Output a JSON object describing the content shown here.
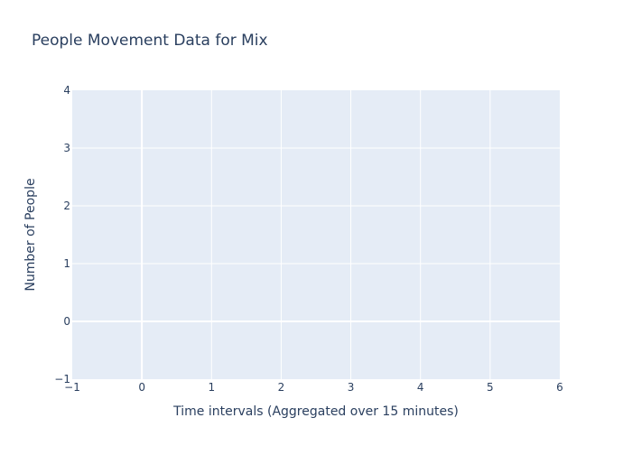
{
  "chart_data": {
    "type": "line",
    "title": "People Movement Data for Mix",
    "xlabel": "Time intervals (Aggregated over 15 minutes)",
    "ylabel": "Number of People",
    "xlim": [
      -1,
      6
    ],
    "ylim": [
      -1,
      4
    ],
    "x_ticks": [
      -1,
      0,
      1,
      2,
      3,
      4,
      5,
      6
    ],
    "y_ticks": [
      -1,
      0,
      1,
      2,
      3,
      4
    ],
    "x_tick_labels": [
      "−1",
      "0",
      "1",
      "2",
      "3",
      "4",
      "5",
      "6"
    ],
    "y_tick_labels": [
      "−1",
      "0",
      "1",
      "2",
      "3",
      "4"
    ],
    "series": [],
    "grid": true,
    "legend": "none",
    "colors": {
      "plot_background": "#e5ecf6",
      "grid": "#ffffff",
      "text": "#2a3f5f"
    }
  }
}
